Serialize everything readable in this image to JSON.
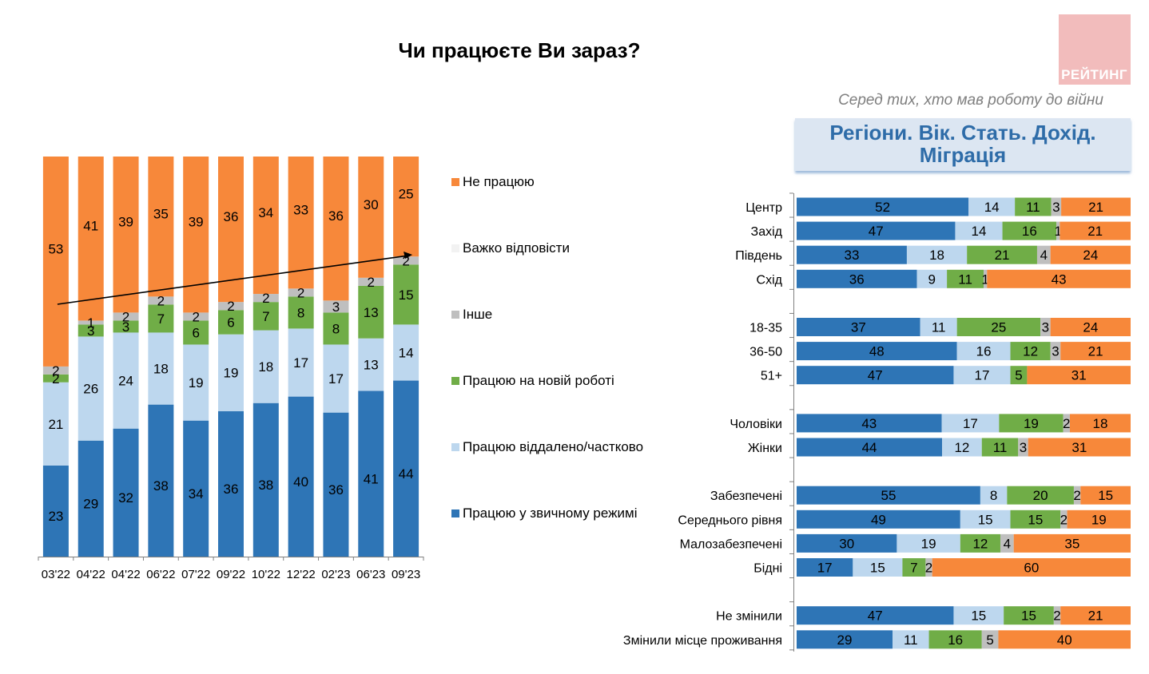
{
  "header": {
    "title": "Чи працюєте Ви зараз?",
    "logo_text": "РЕЙТИНГ",
    "subtitle": "Серед тих, хто мав роботу до війни",
    "section_title_line1": "Регіони. Вік. Стать. Дохід.",
    "section_title_line2": "Міграція"
  },
  "colors": {
    "usual": "#2e75b6",
    "remote": "#bdd7ee",
    "new_job": "#70ad47",
    "other": "#bfbfbf",
    "hard_to_say": "#f2f2f2",
    "not_working": "#f7883a",
    "section_title": "#2e6ca8",
    "logo_bg": "#f2bcbc"
  },
  "legend": [
    {
      "key": "not_working",
      "label": "Не працюю"
    },
    {
      "key": "hard_to_say",
      "label": "Важко відповісти"
    },
    {
      "key": "other",
      "label": "Інше"
    },
    {
      "key": "new_job",
      "label": "Працюю на новій роботі"
    },
    {
      "key": "remote",
      "label": "Працюю віддалено/частково"
    },
    {
      "key": "usual",
      "label": "Працюю у звичному режимі"
    }
  ],
  "chart_data": [
    {
      "type": "bar",
      "stacked": true,
      "orientation": "vertical",
      "title": "Чи працюєте Ви зараз?",
      "xlabel": "",
      "ylabel": "",
      "categories": [
        "03'22",
        "04'22",
        "04'22",
        "06'22",
        "07'22",
        "09'22",
        "10'22",
        "12'22",
        "02'23",
        "06'23",
        "09'23"
      ],
      "series": [
        {
          "name": "Працюю у звичному режимі",
          "key": "usual",
          "values": [
            23,
            29,
            32,
            38,
            34,
            36,
            38,
            40,
            36,
            41,
            44
          ]
        },
        {
          "name": "Працюю віддалено/частково",
          "key": "remote",
          "values": [
            21,
            26,
            24,
            18,
            19,
            19,
            18,
            17,
            17,
            13,
            14
          ]
        },
        {
          "name": "Працюю на новій роботі",
          "key": "new_job",
          "values": [
            2,
            3,
            3,
            7,
            6,
            6,
            7,
            8,
            8,
            13,
            15
          ]
        },
        {
          "name": "Інше",
          "key": "other",
          "values": [
            2,
            1,
            2,
            2,
            2,
            2,
            2,
            2,
            3,
            2,
            2
          ]
        },
        {
          "name": "Не працюю",
          "key": "not_working",
          "values": [
            53,
            41,
            39,
            35,
            39,
            36,
            34,
            33,
            36,
            30,
            25
          ]
        }
      ],
      "annotations": [
        "trend arrow from 03'22 to 09'23 (rising employment)"
      ],
      "legend_position": "right",
      "grid": false
    },
    {
      "type": "bar",
      "stacked": true,
      "orientation": "horizontal",
      "title": "Регіони. Вік. Стать. Дохід. Міграція",
      "subtitle": "Серед тих, хто мав роботу до війни",
      "groups": [
        {
          "categories": [
            "Центр",
            "Захід",
            "Південь",
            "Схід"
          ]
        },
        {
          "categories": [
            "18-35",
            "36-50",
            "51+"
          ]
        },
        {
          "categories": [
            "Чоловіки",
            "Жінки"
          ]
        },
        {
          "categories": [
            "Забезпечені",
            "Середнього рівня",
            "Малозабезпечені",
            "Бідні"
          ]
        },
        {
          "categories": [
            "Не змінили",
            "Змінили місце проживання"
          ]
        }
      ],
      "rows": [
        {
          "label": "Центр",
          "values": [
            52,
            14,
            11,
            3,
            21
          ]
        },
        {
          "label": "Захід",
          "values": [
            47,
            14,
            16,
            1,
            21
          ]
        },
        {
          "label": "Південь",
          "values": [
            33,
            18,
            21,
            4,
            24
          ]
        },
        {
          "label": "Схід",
          "values": [
            36,
            9,
            11,
            1,
            43
          ]
        },
        {
          "label": "18-35",
          "values": [
            37,
            11,
            25,
            3,
            24
          ]
        },
        {
          "label": "36-50",
          "values": [
            48,
            16,
            12,
            3,
            21
          ]
        },
        {
          "label": "51+",
          "values": [
            47,
            17,
            5,
            0,
            31
          ]
        },
        {
          "label": "Чоловіки",
          "values": [
            43,
            17,
            19,
            2,
            18
          ]
        },
        {
          "label": "Жінки",
          "values": [
            44,
            12,
            11,
            3,
            31
          ]
        },
        {
          "label": "Забезпечені",
          "values": [
            55,
            8,
            20,
            2,
            15
          ]
        },
        {
          "label": "Середнього рівня",
          "values": [
            49,
            15,
            15,
            2,
            19
          ]
        },
        {
          "label": "Малозабезпечені",
          "values": [
            30,
            19,
            12,
            4,
            35
          ]
        },
        {
          "label": "Бідні",
          "values": [
            17,
            15,
            7,
            2,
            60
          ]
        },
        {
          "label": "Не змінили",
          "values": [
            47,
            15,
            15,
            2,
            21
          ]
        },
        {
          "label": "Змінили місце проживання",
          "values": [
            29,
            11,
            16,
            5,
            40
          ]
        }
      ],
      "series_order": [
        "usual",
        "remote",
        "new_job",
        "other",
        "not_working"
      ],
      "legend_position": "shared (left chart legend)",
      "grid": false
    }
  ]
}
